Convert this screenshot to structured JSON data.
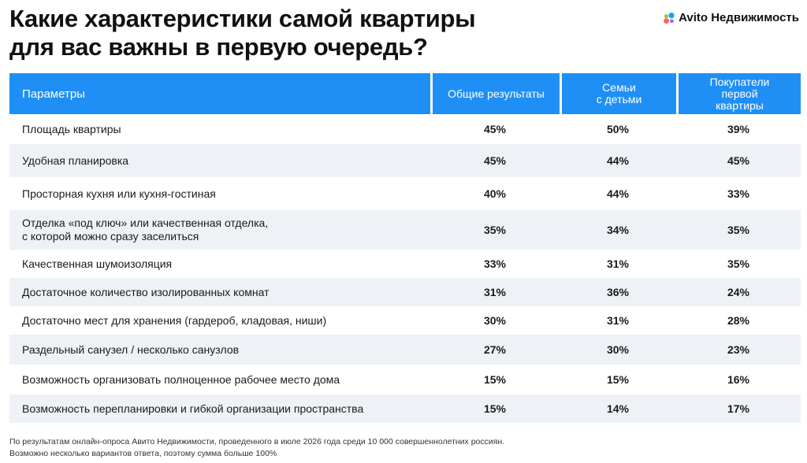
{
  "title": {
    "line1": "Какие характеристики самой квартиры",
    "line2": "для вас важны в первую очередь?"
  },
  "logo": {
    "text": "Avito Недвижимость",
    "icon": "avito-dots-icon",
    "colors": [
      "#00aaff",
      "#97cf26",
      "#ff6163",
      "#a169f7"
    ]
  },
  "chart_data": {
    "type": "table",
    "columns": [
      "Параметры",
      "Общие результаты",
      "Семьи\nс детьми",
      "Покупатели\nпервой\nквартиры"
    ],
    "rows": [
      {
        "param": "Площадь квартиры",
        "values": [
          "45%",
          "50%",
          "39%"
        ]
      },
      {
        "param": "Удобная планировка",
        "values": [
          "45%",
          "44%",
          "45%"
        ]
      },
      {
        "param": "Просторная кухня или кухня-гостиная",
        "values": [
          "40%",
          "44%",
          "33%"
        ]
      },
      {
        "param": "Отделка «под ключ» или качественная отделка,\nс которой можно сразу заселиться",
        "values": [
          "35%",
          "34%",
          "35%"
        ]
      },
      {
        "param": "Качественная шумоизоляция",
        "values": [
          "33%",
          "31%",
          "35%"
        ]
      },
      {
        "param": "Достаточное количество изолированных комнат",
        "values": [
          "31%",
          "36%",
          "24%"
        ]
      },
      {
        "param": "Достаточно мест для хранения (гардероб, кладовая, ниши)",
        "values": [
          "30%",
          "31%",
          "28%"
        ]
      },
      {
        "param": "Раздельный санузел / несколько санузлов",
        "values": [
          "27%",
          "30%",
          "23%"
        ]
      },
      {
        "param": "Возможность организовать полноценное рабочее место дома",
        "values": [
          "15%",
          "15%",
          "16%"
        ]
      },
      {
        "param": "Возможность перепланировки и гибкой организации пространства",
        "values": [
          "15%",
          "14%",
          "17%"
        ]
      }
    ],
    "header_color": "#1f8ff5",
    "stripe_color": "#eef1f5"
  },
  "footnote": {
    "line1": "По результатам онлайн-опроса Авито Недвижимости, проведенного в июле 2026 года среди 10 000 совершеннолетних россиян.",
    "line2": "Возможно несколько вариантов ответа, поэтому сумма больше 100%"
  }
}
